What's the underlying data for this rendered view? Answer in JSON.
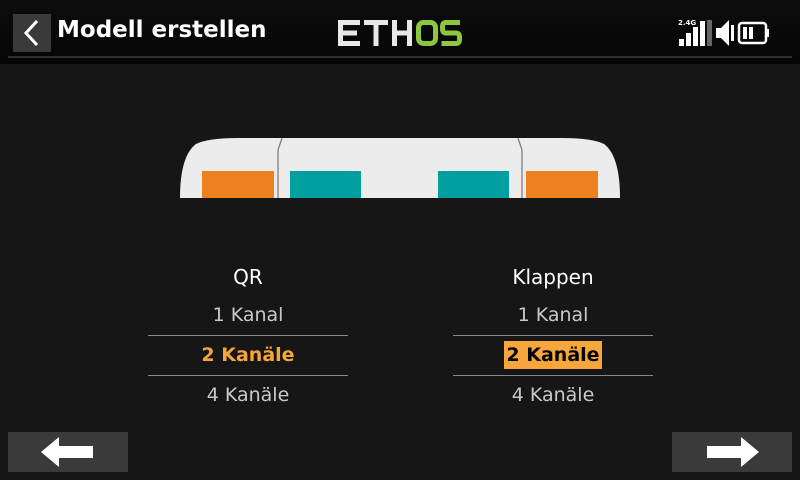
{
  "header": {
    "title": "Modell erstellen",
    "logo_text": "ETHOS",
    "radio_band": "2.4G"
  },
  "colors": {
    "accent": "#f6a63a",
    "aileron_servo": "#ee8020",
    "flap_servo": "#00a0a0"
  },
  "aileron": {
    "label": "QR",
    "options": [
      "1 Kanal",
      "2 Kanäle",
      "4 Kanäle"
    ],
    "selected": "2 Kanäle"
  },
  "flaps": {
    "label": "Klappen",
    "options": [
      "1 Kanal",
      "2 Kanäle",
      "4 Kanäle"
    ],
    "selected": "2 Kanäle"
  },
  "navigation": {
    "previous_icon": "arrow-left-icon",
    "next_icon": "arrow-right-icon"
  }
}
